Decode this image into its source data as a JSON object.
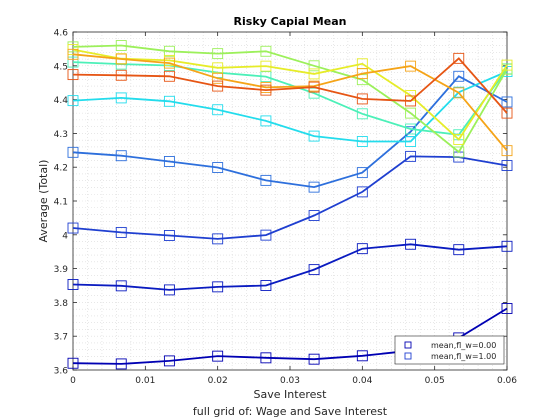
{
  "chart_data": {
    "type": "line",
    "title": "Risky Capial Mean",
    "xlabel": "Save Interest",
    "ylabel": "Average (Total)",
    "caption": "full grid of: Wage and Save Interest",
    "xlim": [
      0,
      0.06
    ],
    "ylim": [
      3.6,
      4.6
    ],
    "x_ticks": [
      "0",
      "0.01",
      "0.02",
      "0.03",
      "0.04",
      "0.05",
      "0.06"
    ],
    "y_ticks": [
      "3.6",
      "3.7",
      "3.8",
      "3.9",
      "4",
      "4.1",
      "4.2",
      "4.3",
      "4.4",
      "4.5",
      "4.6"
    ],
    "grid": "minor-dotted",
    "marker": "square",
    "legend": {
      "position": "bottom-right",
      "entries": [
        "mean,fl_w=0.00",
        "mean,fl_w=1.00"
      ]
    },
    "x": [
      0,
      0.00667,
      0.01333,
      0.02,
      0.02667,
      0.03333,
      0.04,
      0.04667,
      0.05333,
      0.06
    ],
    "series": [
      {
        "color": "#0000b3",
        "values": [
          3.62,
          3.618,
          3.627,
          3.641,
          3.636,
          3.632,
          3.642,
          3.657,
          3.695,
          3.782
        ]
      },
      {
        "color": "#0a1bc0",
        "values": [
          3.853,
          3.849,
          3.837,
          3.846,
          3.85,
          3.897,
          3.959,
          3.972,
          3.956,
          3.966
        ]
      },
      {
        "color": "#1f3fd0",
        "values": [
          4.02,
          4.007,
          3.998,
          3.988,
          3.999,
          4.057,
          4.127,
          4.232,
          4.23,
          4.205
        ]
      },
      {
        "color": "#2d6fdc",
        "values": [
          4.244,
          4.234,
          4.217,
          4.199,
          4.161,
          4.141,
          4.184,
          4.305,
          4.469,
          4.393
        ]
      },
      {
        "color": "#23dcec",
        "values": [
          4.397,
          4.405,
          4.395,
          4.37,
          4.337,
          4.292,
          4.276,
          4.276,
          4.422,
          4.483
        ]
      },
      {
        "color": "#4cf0b8",
        "values": [
          4.511,
          4.505,
          4.501,
          4.48,
          4.468,
          4.419,
          4.358,
          4.313,
          4.296,
          4.491
        ]
      },
      {
        "color": "#9cf05a",
        "values": [
          4.556,
          4.56,
          4.543,
          4.536,
          4.543,
          4.5,
          4.459,
          4.36,
          4.245,
          4.49
        ]
      },
      {
        "color": "#e6ec28",
        "values": [
          4.548,
          4.521,
          4.516,
          4.494,
          4.499,
          4.476,
          4.506,
          4.412,
          4.282,
          4.502
        ]
      },
      {
        "color": "#f5a418",
        "values": [
          4.534,
          4.52,
          4.508,
          4.463,
          4.436,
          4.44,
          4.477,
          4.499,
          4.42,
          4.249
        ]
      },
      {
        "color": "#e65514",
        "values": [
          4.474,
          4.472,
          4.469,
          4.44,
          4.428,
          4.437,
          4.402,
          4.396,
          4.522,
          4.36
        ]
      }
    ]
  }
}
